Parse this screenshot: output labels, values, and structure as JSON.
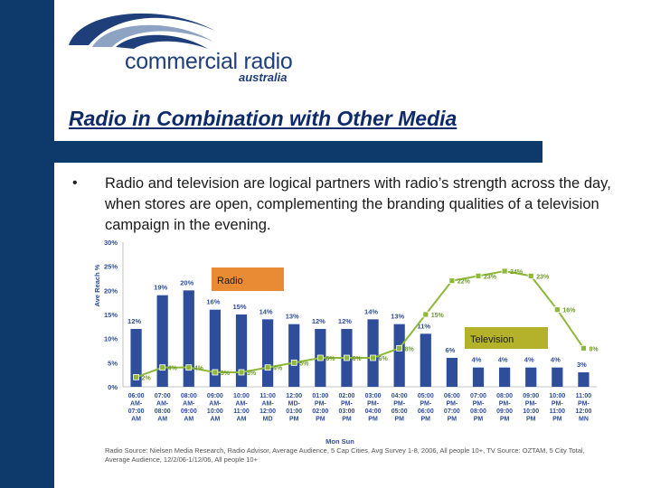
{
  "logo": {
    "line1": "commercial radio",
    "line2": "australia"
  },
  "slide": {
    "title": "Radio in Combination with Other Media",
    "bullet": "Radio and television are logical partners with radio’s strength across the day, when stores are open, complementing the branding qualities of a television campaign in the evening."
  },
  "colors": {
    "navy": "#0e3a6b",
    "bar": "#2e4d9a",
    "line": "#8db83a",
    "radio_box": "#e98a34",
    "tv_box": "#b3b22a"
  },
  "chart_data": {
    "type": "bar",
    "ylabel": "Ave Reach %",
    "xlabel": "Mon Sun",
    "ylim": [
      0,
      30
    ],
    "yticks": [
      "0%",
      "5%",
      "10%",
      "15%",
      "20%",
      "25%",
      "30%"
    ],
    "categories": [
      "06:00 AM-07:00 AM",
      "07:00 AM-08:00 AM",
      "08:00 AM-09:00 AM",
      "09:00 AM-10:00 AM",
      "10:00 AM-11:00 AM",
      "11:00 AM-12:00 MD",
      "12:00 MD-01:00 PM",
      "01:00 PM-02:00 PM",
      "02:00 PM-03:00 PM",
      "03:00 PM-04:00 PM",
      "04:00 PM-05:00 PM",
      "05:00 PM-06:00 PM",
      "06:00 PM-07:00 PM",
      "07:00 PM-08:00 PM",
      "08:00 PM-09:00 PM",
      "09:00 PM-10:00 PM",
      "10:00 PM-11:00 PM",
      "11:00 PM-12:00 MN"
    ],
    "category_lines": [
      [
        "06:00",
        "AM-",
        "07:00",
        "AM"
      ],
      [
        "07:00",
        "AM-",
        "08:00",
        "AM"
      ],
      [
        "08:00",
        "AM-",
        "09:00",
        "AM"
      ],
      [
        "09:00",
        "AM-",
        "10:00",
        "AM"
      ],
      [
        "10:00",
        "AM-",
        "11:00",
        "AM"
      ],
      [
        "11:00",
        "AM-",
        "12:00",
        "MD"
      ],
      [
        "12:00",
        "MD-",
        "01:00",
        "PM"
      ],
      [
        "01:00",
        "PM-",
        "02:00",
        "PM"
      ],
      [
        "02:00",
        "PM-",
        "03:00",
        "PM"
      ],
      [
        "03:00",
        "PM-",
        "04:00",
        "PM"
      ],
      [
        "04:00",
        "PM-",
        "05:00",
        "PM"
      ],
      [
        "05:00",
        "PM-",
        "06:00",
        "PM"
      ],
      [
        "06:00",
        "PM-",
        "07:00",
        "PM"
      ],
      [
        "07:00",
        "PM-",
        "08:00",
        "PM"
      ],
      [
        "08:00",
        "PM-",
        "09:00",
        "PM"
      ],
      [
        "09:00",
        "PM-",
        "10:00",
        "PM"
      ],
      [
        "10:00",
        "PM-",
        "11:00",
        "PM"
      ],
      [
        "11:00",
        "PM-",
        "12:00",
        "MN"
      ]
    ],
    "series": [
      {
        "name": "Radio",
        "kind": "bar",
        "values": [
          12,
          19,
          20,
          16,
          15,
          14,
          13,
          12,
          12,
          14,
          13,
          11,
          6,
          4,
          4,
          4,
          4,
          3
        ]
      },
      {
        "name": "Television",
        "kind": "line",
        "values": [
          2,
          4,
          4,
          3,
          3,
          4,
          5,
          6,
          6,
          6,
          8,
          15,
          22,
          23,
          24,
          23,
          16,
          8
        ]
      }
    ],
    "footnote": "Radio Source: Nielsen Media Research, Radio Advisor, Average Audience, 5 Cap Cities, Avg Survey 1-8, 2006, All people 10+, TV Source: OZTAM, 5 City Total, Average Audience, 12/2/06-1/12/06, All people 10+"
  }
}
